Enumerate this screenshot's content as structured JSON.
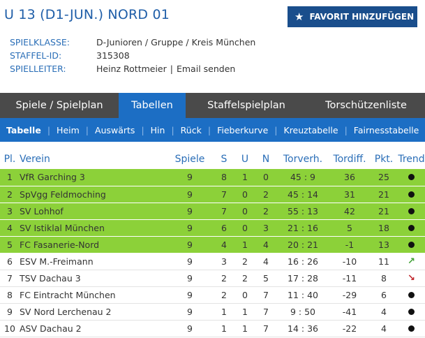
{
  "header": {
    "title": "U 13 (D1-JUN.) NORD 01",
    "favorite_label": "FAVORIT HINZUFÜGEN"
  },
  "meta": {
    "spielklasse_label": "SPIELKLASSE:",
    "spielklasse_value": "D-Junioren / Gruppe / Kreis München",
    "staffel_label": "STAFFEL-ID:",
    "staffel_value": "315308",
    "spielleiter_label": "SPIELLEITER:",
    "spielleiter_name": "Heinz Rottmeier",
    "spielleiter_sep": "|",
    "email_label": "Email senden"
  },
  "tabs": [
    "Spiele / Spielplan",
    "Tabellen",
    "Staffelspielplan",
    "Torschützenliste"
  ],
  "subnav": [
    "Tabelle",
    "Heim",
    "Auswärts",
    "Hin",
    "Rück",
    "Fieberkurve",
    "Kreuztabelle",
    "Fairnesstabelle"
  ],
  "table": {
    "headers": [
      "Pl.",
      "Verein",
      "Spiele",
      "S",
      "U",
      "N",
      "Torverh.",
      "Tordiff.",
      "Pkt.",
      "Trend"
    ],
    "rows": [
      {
        "pl": "1",
        "verein": "VfR Garching 3",
        "spiele": "9",
        "s": "8",
        "u": "1",
        "n": "0",
        "torverh": "45 : 9",
        "tordiff": "36",
        "pkt": "25",
        "trend": "dot",
        "promo": true
      },
      {
        "pl": "2",
        "verein": "SpVgg Feldmoching",
        "spiele": "9",
        "s": "7",
        "u": "0",
        "n": "2",
        "torverh": "45 : 14",
        "tordiff": "31",
        "pkt": "21",
        "trend": "dot",
        "promo": true
      },
      {
        "pl": "3",
        "verein": "SV Lohhof",
        "spiele": "9",
        "s": "7",
        "u": "0",
        "n": "2",
        "torverh": "55 : 13",
        "tordiff": "42",
        "pkt": "21",
        "trend": "dot",
        "promo": true
      },
      {
        "pl": "4",
        "verein": "SV Istiklal München",
        "spiele": "9",
        "s": "6",
        "u": "0",
        "n": "3",
        "torverh": "21 : 16",
        "tordiff": "5",
        "pkt": "18",
        "trend": "dot",
        "promo": true
      },
      {
        "pl": "5",
        "verein": "FC Fasanerie-Nord",
        "spiele": "9",
        "s": "4",
        "u": "1",
        "n": "4",
        "torverh": "20 : 21",
        "tordiff": "-1",
        "pkt": "13",
        "trend": "dot",
        "promo": true
      },
      {
        "pl": "6",
        "verein": "ESV M.-Freimann",
        "spiele": "9",
        "s": "3",
        "u": "2",
        "n": "4",
        "torverh": "16 : 26",
        "tordiff": "-10",
        "pkt": "11",
        "trend": "up",
        "promo": false
      },
      {
        "pl": "7",
        "verein": "TSV Dachau 3",
        "spiele": "9",
        "s": "2",
        "u": "2",
        "n": "5",
        "torverh": "17 : 28",
        "tordiff": "-11",
        "pkt": "8",
        "trend": "down",
        "promo": false
      },
      {
        "pl": "8",
        "verein": "FC Eintracht München",
        "spiele": "9",
        "s": "2",
        "u": "0",
        "n": "7",
        "torverh": "11 : 40",
        "tordiff": "-29",
        "pkt": "6",
        "trend": "dot",
        "promo": false
      },
      {
        "pl": "9",
        "verein": "SV Nord Lerchenau 2",
        "spiele": "9",
        "s": "1",
        "u": "1",
        "n": "7",
        "torverh": "9 : 50",
        "tordiff": "-41",
        "pkt": "4",
        "trend": "dot",
        "promo": false
      },
      {
        "pl": "10",
        "verein": "ASV Dachau 2",
        "spiele": "9",
        "s": "1",
        "u": "1",
        "n": "7",
        "torverh": "14 : 36",
        "tordiff": "-22",
        "pkt": "4",
        "trend": "dot",
        "promo": false
      }
    ]
  },
  "colors": {
    "accent_blue": "#1c6ec4",
    "promotion_green": "#8cd139",
    "tab_bar_gray": "#4a4a4a"
  }
}
